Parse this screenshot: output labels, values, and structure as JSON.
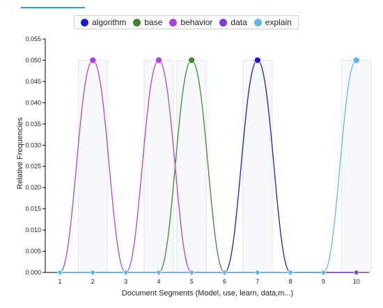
{
  "chart_data": {
    "type": "line",
    "xlabel": "Document Segments (Model, use, learn, data,m...)",
    "ylabel": "Relative Frequencies",
    "x": [
      1,
      2,
      3,
      4,
      5,
      6,
      7,
      8,
      9,
      10
    ],
    "ylim": [
      0,
      0.055
    ],
    "yticks": [
      "0.000",
      "0.005",
      "0.010",
      "0.015",
      "0.020",
      "0.025",
      "0.030",
      "0.035",
      "0.040",
      "0.045",
      "0.050",
      "0.055"
    ],
    "xticks": [
      "1",
      "2",
      "3",
      "4",
      "5",
      "6",
      "7",
      "8",
      "9",
      "10"
    ],
    "legend_position": "top",
    "series": [
      {
        "name": "algorithm",
        "color": "#1a1ac8",
        "values": [
          0,
          0,
          0,
          0,
          0,
          0,
          0.05,
          0,
          0,
          0
        ]
      },
      {
        "name": "base",
        "color": "#3a8a2a",
        "values": [
          0,
          0,
          0,
          0,
          0.05,
          0,
          0,
          0,
          0,
          0
        ]
      },
      {
        "name": "behavior",
        "color": "#b040e0",
        "values": [
          0,
          0.05,
          0,
          0.05,
          0,
          0,
          0,
          0,
          0,
          0
        ]
      },
      {
        "name": "data",
        "color": "#7a3ce8",
        "values": [
          0,
          0,
          0,
          0,
          0,
          0,
          0,
          0,
          0,
          0
        ]
      },
      {
        "name": "explain",
        "color": "#5fb8e8",
        "values": [
          0,
          0,
          0,
          0,
          0,
          0,
          0,
          0,
          0,
          0.05
        ]
      }
    ]
  }
}
